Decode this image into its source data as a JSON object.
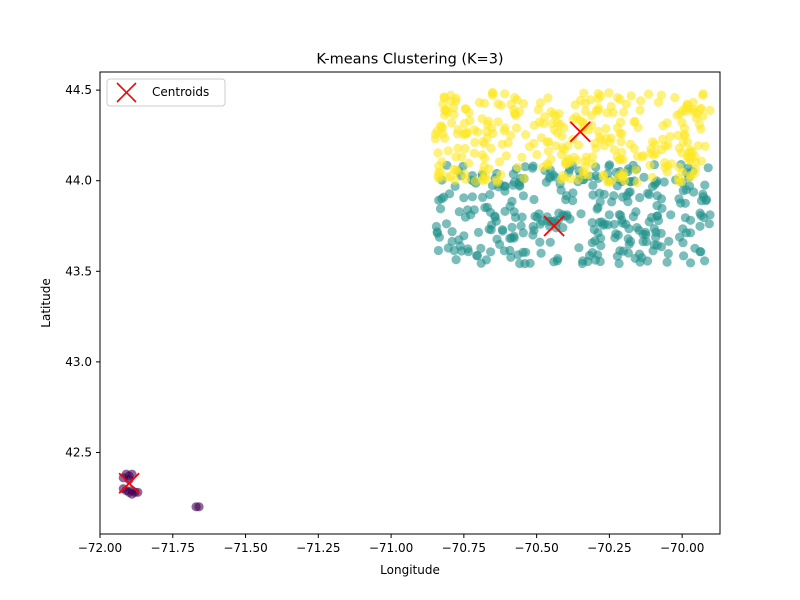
{
  "chart_data": {
    "type": "scatter",
    "title": "K-means Clustering (K=3)",
    "xlabel": "Longitude",
    "ylabel": "Latitude",
    "xlim": [
      -72.0,
      -69.87
    ],
    "ylim": [
      42.05,
      44.6
    ],
    "xticks": [
      -72.0,
      -71.75,
      -71.5,
      -71.25,
      -71.0,
      -70.75,
      -70.5,
      -70.25,
      -70.0
    ],
    "xtick_labels": [
      "−72.00",
      "−71.75",
      "−71.50",
      "−71.25",
      "−71.00",
      "−70.75",
      "−70.50",
      "−70.25",
      "−70.00"
    ],
    "yticks": [
      42.5,
      43.0,
      43.5,
      44.0,
      44.5
    ],
    "ytick_labels": [
      "42.5",
      "43.0",
      "43.5",
      "44.0",
      "44.5"
    ],
    "grid": false,
    "legend": {
      "position": "upper-left",
      "entries": [
        "Centroids"
      ]
    },
    "clusters": [
      {
        "color": "#440154",
        "points": [
          [
            -71.91,
            42.38
          ],
          [
            -71.9,
            42.37
          ],
          [
            -71.92,
            42.36
          ],
          [
            -71.89,
            42.38
          ],
          [
            -71.9,
            42.35
          ],
          [
            -71.91,
            42.29
          ],
          [
            -71.9,
            42.28
          ],
          [
            -71.89,
            42.29
          ],
          [
            -71.88,
            42.28
          ],
          [
            -71.87,
            42.28
          ],
          [
            -71.92,
            42.3
          ],
          [
            -71.89,
            42.27
          ],
          [
            -71.67,
            42.2
          ],
          [
            -71.66,
            42.2
          ]
        ]
      },
      {
        "color": "#21918c",
        "lon_range": [
          -70.85,
          -69.9
        ],
        "lat_range": [
          43.54,
          44.09
        ],
        "count": 320
      },
      {
        "color": "#fde725",
        "lon_range": [
          -70.85,
          -69.9
        ],
        "lat_range": [
          43.99,
          44.5
        ],
        "count": 320
      }
    ],
    "centroids": {
      "name": "Centroids",
      "color": "#ff0000",
      "marker": "x",
      "points": [
        [
          -71.9,
          42.33
        ],
        [
          -70.44,
          43.75
        ],
        [
          -70.35,
          44.27
        ]
      ]
    }
  }
}
